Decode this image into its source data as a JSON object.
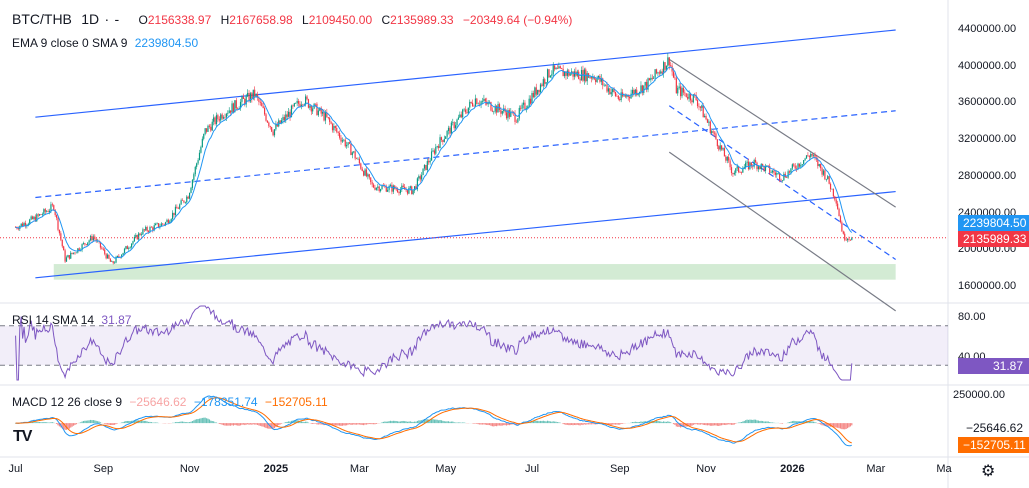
{
  "header": {
    "symbol": "BTC/THB",
    "interval": "1D",
    "dots": "·",
    "dash": "-",
    "open_label": "O",
    "open": "2156338.97",
    "high_label": "H",
    "high": "2167658.98",
    "low_label": "L",
    "low": "2109450.00",
    "close_label": "C",
    "close": "2135989.33",
    "change": "−20349.64 (−0.94%)"
  },
  "ema": {
    "label": "EMA 9 close 0 SMA 9",
    "value": "2239804.50"
  },
  "rsi": {
    "label": "RSI 14 SMA 14",
    "value": "31.87",
    "axis": [
      "80.00",
      "40.00"
    ],
    "tag": "31.87"
  },
  "macd": {
    "label": "MACD 12 26 close 9",
    "hist": "−25646.62",
    "macd": "−178351.74",
    "signal": "−152705.11",
    "axis": [
      "250000.00"
    ],
    "tags": [
      "−25646.62",
      "−152705.11"
    ]
  },
  "price_tags": {
    "ema": "2239804.50",
    "close": "2135989.33"
  },
  "colors": {
    "up": "#089981",
    "down": "#f23645",
    "channel": "#2962ff",
    "ema": "#2196f3",
    "rsi": "#7e57c2",
    "macd": "#2196f3",
    "signal": "#ff6d00",
    "zone": "#c8e6c9",
    "bear_channel": "#787b86"
  },
  "icons": {
    "logo": "tradingview-logo-icon",
    "settings": "gear-icon"
  },
  "chart_data": {
    "type": "candlestick",
    "price_axis": {
      "ticks": [
        4400000,
        4000000,
        3600000,
        3200000,
        2800000,
        2400000,
        2000000,
        1600000
      ],
      "tick_labels": [
        "4400000.00",
        "4000000.00",
        "3600000.00",
        "3200000.00",
        "2800000.00",
        "2400000.00",
        "2000000.00",
        "1600000.00"
      ]
    },
    "x_ticks": [
      "Jul",
      "Sep",
      "Nov",
      "2025",
      "Mar",
      "May",
      "Jul",
      "Sep",
      "Nov",
      "2026",
      "Mar",
      "Ma"
    ],
    "price_path": [
      [
        "2024-07-01",
        2250000
      ],
      [
        "2024-07-15",
        2350000
      ],
      [
        "2024-07-28",
        2480000
      ],
      [
        "2024-08-05",
        1900000
      ],
      [
        "2024-08-25",
        2150000
      ],
      [
        "2024-09-07",
        1850000
      ],
      [
        "2024-09-28",
        2200000
      ],
      [
        "2024-10-15",
        2300000
      ],
      [
        "2024-10-31",
        2600000
      ],
      [
        "2024-11-12",
        3300000
      ],
      [
        "2024-11-25",
        3500000
      ],
      [
        "2024-12-17",
        3700000
      ],
      [
        "2024-12-30",
        3300000
      ],
      [
        "2025-01-20",
        3650000
      ],
      [
        "2025-02-05",
        3450000
      ],
      [
        "2025-02-25",
        3050000
      ],
      [
        "2025-03-10",
        2700000
      ],
      [
        "2025-04-08",
        2650000
      ],
      [
        "2025-04-25",
        3150000
      ],
      [
        "2025-05-22",
        3650000
      ],
      [
        "2025-06-20",
        3450000
      ],
      [
        "2025-07-14",
        3950000
      ],
      [
        "2025-08-14",
        3900000
      ],
      [
        "2025-09-01",
        3650000
      ],
      [
        "2025-09-20",
        3800000
      ],
      [
        "2025-10-06",
        4080000
      ],
      [
        "2025-10-11",
        3750000
      ],
      [
        "2025-10-25",
        3650000
      ],
      [
        "2025-11-05",
        3300000
      ],
      [
        "2025-11-20",
        2850000
      ],
      [
        "2025-12-05",
        2950000
      ],
      [
        "2025-12-25",
        2800000
      ],
      [
        "2026-01-14",
        3050000
      ],
      [
        "2026-01-25",
        2800000
      ],
      [
        "2026-02-01",
        2550000
      ],
      [
        "2026-02-06",
        2150000
      ],
      [
        "2026-02-12",
        2135989
      ]
    ],
    "channels": {
      "ascending": {
        "upper": [
          [
            "2024-07-15",
            3450000
          ],
          [
            "2026-03-15",
            4400000
          ]
        ],
        "lower": [
          [
            "2024-07-15",
            1700000
          ],
          [
            "2026-03-15",
            2640000
          ]
        ],
        "mid": [
          [
            "2024-07-15",
            2575000
          ],
          [
            "2026-03-15",
            3520000
          ]
        ]
      },
      "descending": {
        "upper": [
          [
            "2025-10-06",
            4080000
          ],
          [
            "2026-03-15",
            2470000
          ]
        ],
        "lower": [
          [
            "2025-10-06",
            3070000
          ],
          [
            "2026-03-15",
            1340000
          ]
        ],
        "mid": [
          [
            "2025-10-06",
            3575000
          ],
          [
            "2026-03-15",
            1900000
          ]
        ]
      }
    },
    "support_zone": [
      1680000,
      1850000
    ],
    "last_close": 2135989.33,
    "ema9": 2239804.5,
    "rsi_levels": [
      70,
      30
    ],
    "rsi_last": 31.87
  }
}
